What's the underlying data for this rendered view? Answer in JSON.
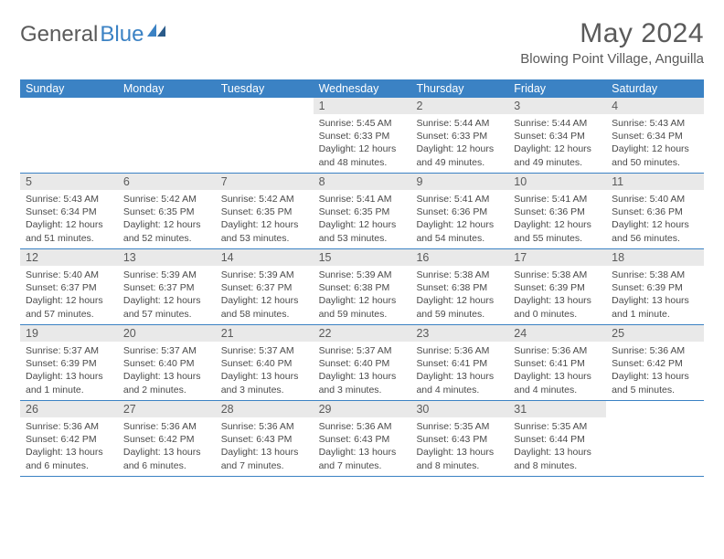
{
  "logo": {
    "part1": "General",
    "part2": "Blue"
  },
  "title": "May 2024",
  "location": "Blowing Point Village, Anguilla",
  "colors": {
    "header_bg": "#3b82c4",
    "daynum_bg": "#e9e9e9",
    "text_gray": "#5a5a5a",
    "body_text": "#4a4a4a"
  },
  "weekdays": [
    "Sunday",
    "Monday",
    "Tuesday",
    "Wednesday",
    "Thursday",
    "Friday",
    "Saturday"
  ],
  "weeks": [
    [
      null,
      null,
      null,
      {
        "n": "1",
        "sr": "5:45 AM",
        "ss": "6:33 PM",
        "dl": "12 hours and 48 minutes."
      },
      {
        "n": "2",
        "sr": "5:44 AM",
        "ss": "6:33 PM",
        "dl": "12 hours and 49 minutes."
      },
      {
        "n": "3",
        "sr": "5:44 AM",
        "ss": "6:34 PM",
        "dl": "12 hours and 49 minutes."
      },
      {
        "n": "4",
        "sr": "5:43 AM",
        "ss": "6:34 PM",
        "dl": "12 hours and 50 minutes."
      }
    ],
    [
      {
        "n": "5",
        "sr": "5:43 AM",
        "ss": "6:34 PM",
        "dl": "12 hours and 51 minutes."
      },
      {
        "n": "6",
        "sr": "5:42 AM",
        "ss": "6:35 PM",
        "dl": "12 hours and 52 minutes."
      },
      {
        "n": "7",
        "sr": "5:42 AM",
        "ss": "6:35 PM",
        "dl": "12 hours and 53 minutes."
      },
      {
        "n": "8",
        "sr": "5:41 AM",
        "ss": "6:35 PM",
        "dl": "12 hours and 53 minutes."
      },
      {
        "n": "9",
        "sr": "5:41 AM",
        "ss": "6:36 PM",
        "dl": "12 hours and 54 minutes."
      },
      {
        "n": "10",
        "sr": "5:41 AM",
        "ss": "6:36 PM",
        "dl": "12 hours and 55 minutes."
      },
      {
        "n": "11",
        "sr": "5:40 AM",
        "ss": "6:36 PM",
        "dl": "12 hours and 56 minutes."
      }
    ],
    [
      {
        "n": "12",
        "sr": "5:40 AM",
        "ss": "6:37 PM",
        "dl": "12 hours and 57 minutes."
      },
      {
        "n": "13",
        "sr": "5:39 AM",
        "ss": "6:37 PM",
        "dl": "12 hours and 57 minutes."
      },
      {
        "n": "14",
        "sr": "5:39 AM",
        "ss": "6:37 PM",
        "dl": "12 hours and 58 minutes."
      },
      {
        "n": "15",
        "sr": "5:39 AM",
        "ss": "6:38 PM",
        "dl": "12 hours and 59 minutes."
      },
      {
        "n": "16",
        "sr": "5:38 AM",
        "ss": "6:38 PM",
        "dl": "12 hours and 59 minutes."
      },
      {
        "n": "17",
        "sr": "5:38 AM",
        "ss": "6:39 PM",
        "dl": "13 hours and 0 minutes."
      },
      {
        "n": "18",
        "sr": "5:38 AM",
        "ss": "6:39 PM",
        "dl": "13 hours and 1 minute."
      }
    ],
    [
      {
        "n": "19",
        "sr": "5:37 AM",
        "ss": "6:39 PM",
        "dl": "13 hours and 1 minute."
      },
      {
        "n": "20",
        "sr": "5:37 AM",
        "ss": "6:40 PM",
        "dl": "13 hours and 2 minutes."
      },
      {
        "n": "21",
        "sr": "5:37 AM",
        "ss": "6:40 PM",
        "dl": "13 hours and 3 minutes."
      },
      {
        "n": "22",
        "sr": "5:37 AM",
        "ss": "6:40 PM",
        "dl": "13 hours and 3 minutes."
      },
      {
        "n": "23",
        "sr": "5:36 AM",
        "ss": "6:41 PM",
        "dl": "13 hours and 4 minutes."
      },
      {
        "n": "24",
        "sr": "5:36 AM",
        "ss": "6:41 PM",
        "dl": "13 hours and 4 minutes."
      },
      {
        "n": "25",
        "sr": "5:36 AM",
        "ss": "6:42 PM",
        "dl": "13 hours and 5 minutes."
      }
    ],
    [
      {
        "n": "26",
        "sr": "5:36 AM",
        "ss": "6:42 PM",
        "dl": "13 hours and 6 minutes."
      },
      {
        "n": "27",
        "sr": "5:36 AM",
        "ss": "6:42 PM",
        "dl": "13 hours and 6 minutes."
      },
      {
        "n": "28",
        "sr": "5:36 AM",
        "ss": "6:43 PM",
        "dl": "13 hours and 7 minutes."
      },
      {
        "n": "29",
        "sr": "5:36 AM",
        "ss": "6:43 PM",
        "dl": "13 hours and 7 minutes."
      },
      {
        "n": "30",
        "sr": "5:35 AM",
        "ss": "6:43 PM",
        "dl": "13 hours and 8 minutes."
      },
      {
        "n": "31",
        "sr": "5:35 AM",
        "ss": "6:44 PM",
        "dl": "13 hours and 8 minutes."
      },
      null
    ]
  ],
  "labels": {
    "sunrise": "Sunrise: ",
    "sunset": "Sunset: ",
    "daylight": "Daylight: "
  }
}
